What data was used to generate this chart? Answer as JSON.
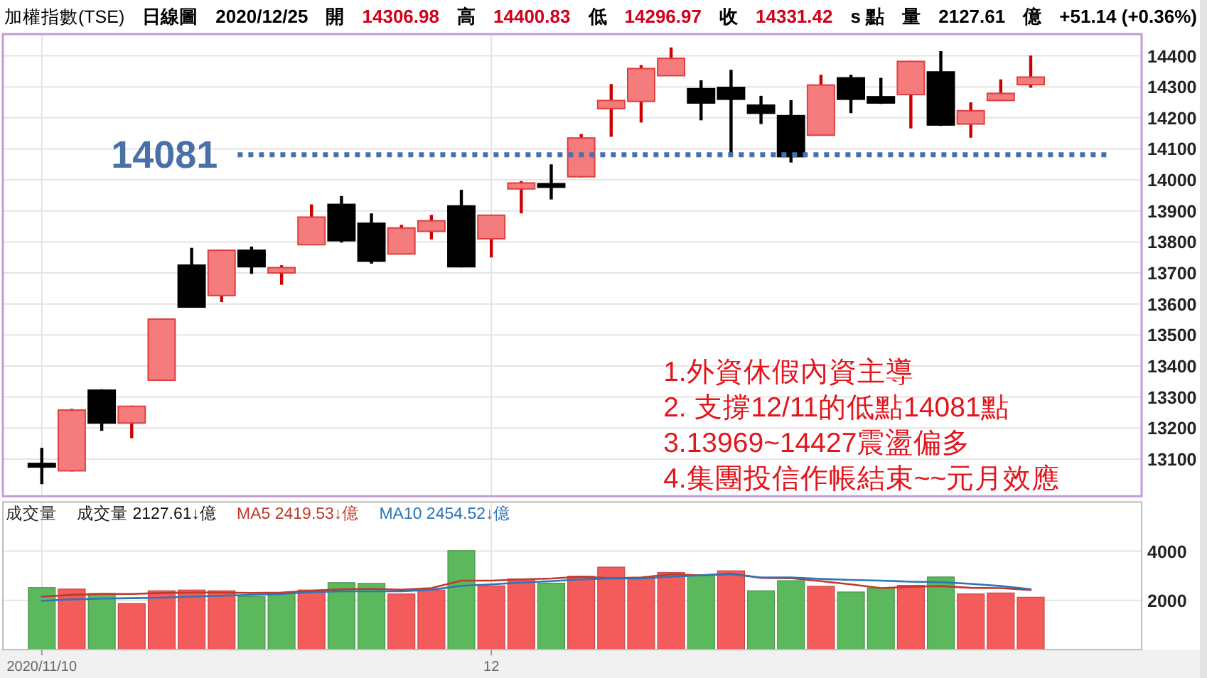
{
  "chart_data": [
    {
      "type": "other",
      "title": "加權指數(TSE)",
      "annotations": [
        "日線圖",
        "2020/12/25",
        "開",
        "14306.98",
        "高",
        "14400.83",
        "低",
        "14296.97",
        "收",
        "14331.42",
        "s 點",
        "量",
        "2127.61",
        "億",
        "+51.14 (+0.36%)"
      ],
      "colors": [
        "#000000",
        "#000000",
        "#000000",
        "#d0021b",
        "#000000",
        "#d0021b",
        "#000000",
        "#d0021b",
        "#000000",
        "#d0021b",
        "#000000",
        "#000000",
        "#000000",
        "#000000",
        "#000000"
      ]
    },
    {
      "type": "candlestick",
      "categories": [
        "2020/11/10",
        null,
        null,
        null,
        null,
        null,
        null,
        null,
        null,
        null,
        null,
        null,
        null,
        null,
        null,
        "12",
        null,
        null,
        null,
        null,
        null,
        null,
        null,
        null,
        null,
        null,
        null,
        null,
        null,
        null,
        null,
        null,
        null,
        null
      ],
      "ohlc": [
        [
          13080,
          13136,
          13019,
          13080
        ],
        [
          13062,
          13262,
          13060,
          13258
        ],
        [
          13322,
          13325,
          13191,
          13216
        ],
        [
          13216,
          13272,
          13167,
          13270
        ],
        [
          13354,
          13553,
          13352,
          13551
        ],
        [
          13725,
          13781,
          13588,
          13590
        ],
        [
          13627,
          13775,
          13606,
          13773
        ],
        [
          13773,
          13785,
          13697,
          13720
        ],
        [
          13700,
          13725,
          13662,
          13717
        ],
        [
          13791,
          13921,
          13790,
          13880
        ],
        [
          13921,
          13948,
          13798,
          13804
        ],
        [
          13860,
          13892,
          13730,
          13738
        ],
        [
          13761,
          13855,
          13760,
          13845
        ],
        [
          13834,
          13887,
          13808,
          13868
        ],
        [
          13916,
          13968,
          13718,
          13720
        ],
        [
          13810,
          13888,
          13750,
          13886
        ],
        [
          13971,
          13996,
          13892,
          13990
        ],
        [
          13982,
          14050,
          13937,
          13982
        ],
        [
          14010,
          14148,
          14008,
          14135
        ],
        [
          14230,
          14309,
          14139,
          14256
        ],
        [
          14253,
          14370,
          14185,
          14359
        ],
        [
          14336,
          14427,
          14335,
          14392
        ],
        [
          14294,
          14321,
          14192,
          14248
        ],
        [
          14298,
          14355,
          14081,
          14260
        ],
        [
          14241,
          14271,
          14180,
          14215
        ],
        [
          14207,
          14257,
          14056,
          14075
        ],
        [
          14144,
          14339,
          14143,
          14306
        ],
        [
          14329,
          14339,
          14215,
          14260
        ],
        [
          14268,
          14329,
          14245,
          14248
        ],
        [
          14275,
          14384,
          14166,
          14382
        ],
        [
          14348,
          14415,
          14174,
          14177
        ],
        [
          14180,
          14250,
          14136,
          14223
        ],
        [
          14256,
          14324,
          14255,
          14279
        ],
        [
          14306.98,
          14400.83,
          14296.97,
          14331.42
        ]
      ],
      "colors": [
        "#000000",
        "#f47c7c",
        "#000000",
        "#f47c7c",
        "#f47c7c",
        "#000000",
        "#f47c7c",
        "#000000",
        "#f47c7c",
        "#f47c7c",
        "#000000",
        "#000000",
        "#f47c7c",
        "#f47c7c",
        "#000000",
        "#f47c7c",
        "#f47c7c",
        "#000000",
        "#f47c7c",
        "#f47c7c",
        "#f47c7c",
        "#f47c7c",
        "#000000",
        "#000000",
        "#000000",
        "#000000",
        "#f47c7c",
        "#000000",
        "#000000",
        "#f47c7c",
        "#000000",
        "#f47c7c",
        "#f47c7c",
        "#f47c7c"
      ],
      "ylim": [
        12980,
        14470
      ],
      "yticks": [
        13100,
        13200,
        13300,
        13400,
        13500,
        13600,
        13700,
        13800,
        13900,
        14000,
        14100,
        14200,
        14300,
        14400
      ],
      "grid": true,
      "tick_labels": "y",
      "ref_lines": [
        {
          "axis": "y",
          "value": 14081,
          "label": "14081",
          "color": "#4a70aa",
          "line_style": "dotted"
        }
      ],
      "annotations": [
        "1.外資休假內資主導",
        "2. 支撐12/11的低點14081點",
        "3.13969~14427震盪偏多",
        "4.集團投信作帳結束~~元月效應"
      ]
    },
    {
      "type": "bar",
      "title": "成交量",
      "categories": [
        "2020/11/10",
        null,
        null,
        null,
        null,
        null,
        null,
        null,
        null,
        null,
        null,
        null,
        null,
        null,
        null,
        "12",
        null,
        null,
        null,
        null,
        null,
        null,
        null,
        null,
        null,
        null,
        null,
        null,
        null,
        null,
        null,
        null,
        null,
        null
      ],
      "series": [
        {
          "values": [
            2520,
            2460,
            2280,
            1870,
            2390,
            2420,
            2390,
            2150,
            2300,
            2420,
            2720,
            2690,
            2260,
            2420,
            4020,
            2590,
            2870,
            2700,
            2980,
            3350,
            2910,
            3130,
            3040,
            3200,
            2390,
            2800,
            2570,
            2340,
            2500,
            2610,
            2950,
            2260,
            2300,
            2127.61
          ],
          "colors": [
            "#5cb85c",
            "#f45b5b",
            "#5cb85c",
            "#f45b5b",
            "#f45b5b",
            "#f45b5b",
            "#f45b5b",
            "#5cb85c",
            "#5cb85c",
            "#f45b5b",
            "#5cb85c",
            "#5cb85c",
            "#f45b5b",
            "#f45b5b",
            "#5cb85c",
            "#f45b5b",
            "#f45b5b",
            "#5cb85c",
            "#f45b5b",
            "#f45b5b",
            "#f45b5b",
            "#f45b5b",
            "#5cb85c",
            "#f45b5b",
            "#5cb85c",
            "#5cb85c",
            "#f45b5b",
            "#5cb85c",
            "#5cb85c",
            "#f45b5b",
            "#5cb85c",
            "#f45b5b",
            "#f45b5b",
            "#f45b5b"
          ]
        },
        {
          "type": "line",
          "name": "MA5 2419.53↓億",
          "color": "#c0392b",
          "values": [
            2150,
            2220,
            2260,
            2260,
            2300,
            2320,
            2320,
            2300,
            2320,
            2390,
            2450,
            2470,
            2430,
            2500,
            2800,
            2800,
            2850,
            2890,
            2960,
            2900,
            2930,
            3060,
            3020,
            3090,
            2910,
            2900,
            2780,
            2650,
            2500,
            2550,
            2580,
            2510,
            2500,
            2419.53
          ]
        },
        {
          "type": "line",
          "name": "MA10 2454.52↓億",
          "color": "#2e75b6",
          "values": [
            1980,
            2040,
            2070,
            2090,
            2110,
            2150,
            2190,
            2220,
            2260,
            2330,
            2370,
            2370,
            2370,
            2430,
            2590,
            2650,
            2720,
            2780,
            2850,
            2890,
            2890,
            2960,
            3020,
            3060,
            2930,
            2930,
            2870,
            2830,
            2800,
            2760,
            2740,
            2670,
            2580,
            2454.52
          ]
        }
      ],
      "ylim": [
        0,
        6000
      ],
      "yticks": [
        2000,
        4000
      ],
      "grid": true,
      "legend": "top left",
      "annotations": [
        "成交量 2127.61↓億"
      ]
    }
  ]
}
